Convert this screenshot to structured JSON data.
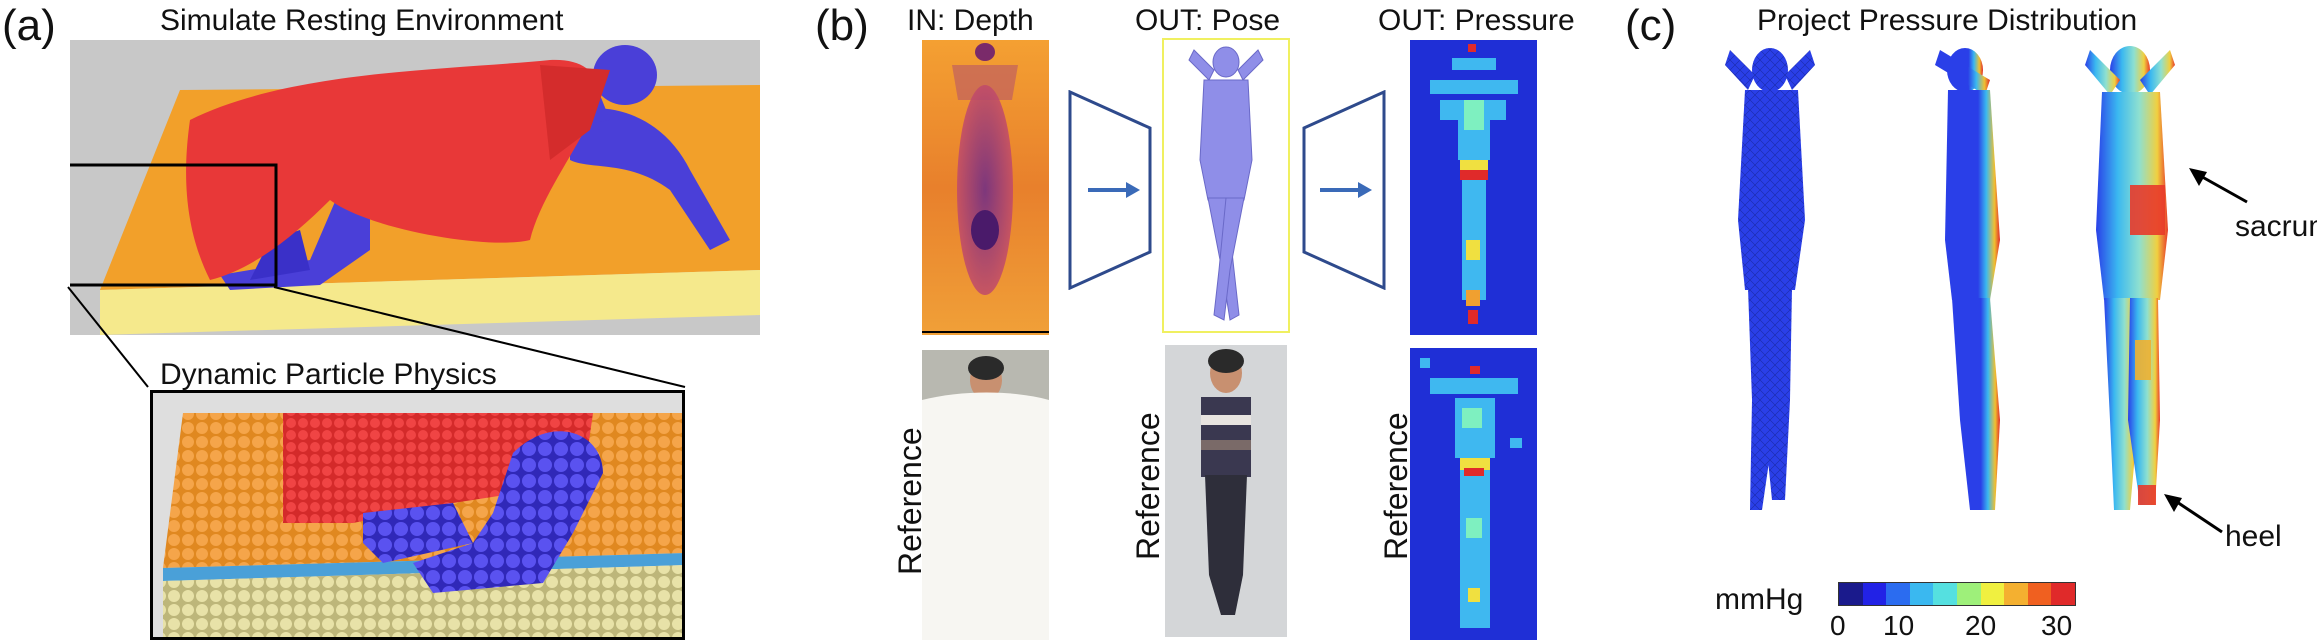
{
  "panel_a": {
    "label": "(a)",
    "title": "Simulate Resting Environment",
    "inset_title": "Dynamic Particle Physics"
  },
  "panel_b": {
    "label": "(b)",
    "col_in": "IN: Depth",
    "col_pose": "OUT: Pose",
    "col_pressure": "OUT: Pressure",
    "reference_label": "Reference"
  },
  "panel_c": {
    "label": "(c)",
    "title": "Project Pressure Distribution",
    "annotation_sacrum": "sacrum",
    "annotation_heel": "heel",
    "colorbar_unit": "mmHg",
    "colorbar_ticks": [
      "0",
      "10",
      "20",
      "30"
    ],
    "colorbar_colors": [
      "#1a1a8c",
      "#2222e6",
      "#2b6cf0",
      "#3ab8f0",
      "#55e0e0",
      "#9ef07a",
      "#f0f040",
      "#f4b030",
      "#f06020",
      "#e02a2a"
    ]
  }
}
